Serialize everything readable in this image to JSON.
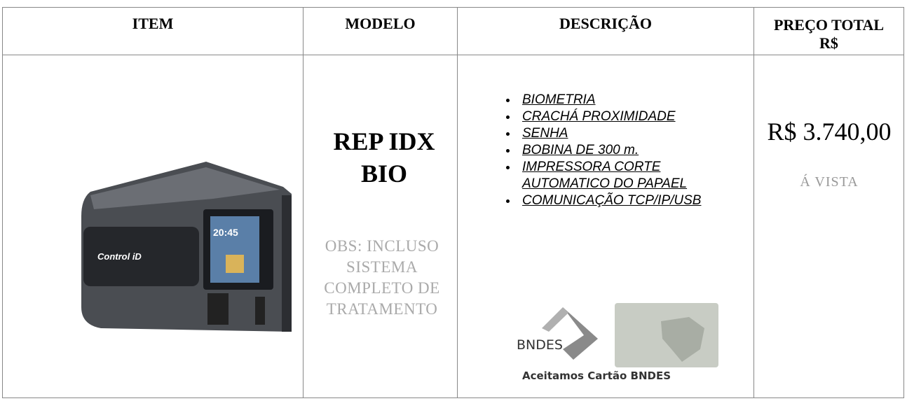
{
  "header": {
    "columns": [
      "ITEM",
      "MODELO",
      "DESCRIÇÃO",
      "PREÇO TOTAL R$"
    ]
  },
  "row": {
    "device": {
      "brand": "Control iD",
      "clock": "20:45"
    },
    "model": "REP IDX BIO",
    "note": "OBS: INCLUSO SISTEMA COMPLETO DE TRATAMENTO",
    "features": [
      "BIOMETRIA",
      "CRACHÁ PROXIMIDADE",
      "SENHA",
      "BOBINA DE 300 m.",
      "IMPRESSORA CORTE AUTOMATICO DO PAPAEL",
      "COMUNICAÇÃO TCP/IP/USB"
    ],
    "bndes": {
      "logo": "BNDES",
      "caption": "Aceitamos Cartão BNDES"
    },
    "price": "R$ 3.740,00",
    "payment": "Á VISTA"
  }
}
